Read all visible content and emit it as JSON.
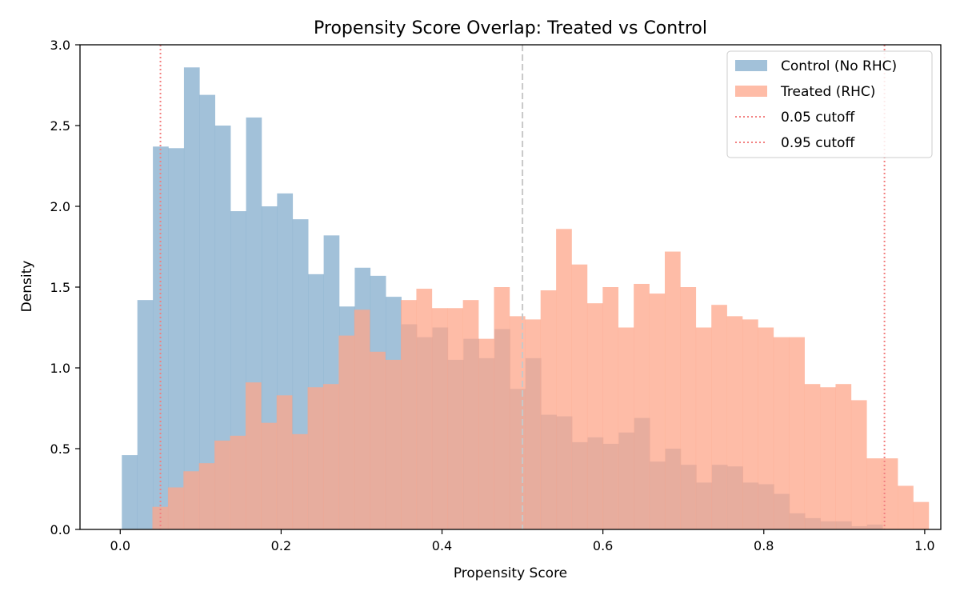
{
  "chart_data": {
    "type": "bar",
    "title": "Propensity Score Overlap: Treated vs Control",
    "xlabel": "Propensity Score",
    "ylabel": "Density",
    "xlim": [
      -0.05,
      1.02
    ],
    "ylim": [
      0,
      3.0
    ],
    "x_ticks": [
      "0.0",
      "0.2",
      "0.4",
      "0.6",
      "0.8",
      "1.0"
    ],
    "y_ticks": [
      "0.0",
      "0.5",
      "1.0",
      "1.5",
      "2.0",
      "2.5",
      "3.0"
    ],
    "grid": false,
    "legend_position": "top-right",
    "series": [
      {
        "name": "Control (No RHC)",
        "color": "#7aa6c9",
        "opacity": 0.7,
        "bin_start": 0.002,
        "bin_width": 0.0193,
        "values": [
          0.46,
          1.42,
          2.37,
          2.36,
          2.86,
          2.69,
          2.5,
          1.97,
          2.55,
          2.0,
          2.08,
          1.92,
          1.58,
          1.82,
          1.38,
          1.62,
          1.57,
          1.44,
          1.27,
          1.19,
          1.25,
          1.05,
          1.18,
          1.06,
          1.24,
          0.87,
          1.06,
          0.71,
          0.7,
          0.54,
          0.57,
          0.53,
          0.6,
          0.69,
          0.42,
          0.5,
          0.4,
          0.29,
          0.4,
          0.39,
          0.29,
          0.28,
          0.22,
          0.1,
          0.07,
          0.05,
          0.05,
          0.02,
          0.03
        ]
      },
      {
        "name": "Treated (RHC)",
        "color": "#fda58a",
        "opacity": 0.75,
        "bin_start": 0.04,
        "bin_width": 0.0193,
        "values": [
          0.14,
          0.26,
          0.36,
          0.41,
          0.55,
          0.58,
          0.91,
          0.66,
          0.83,
          0.59,
          0.88,
          0.9,
          1.2,
          1.36,
          1.1,
          1.05,
          1.42,
          1.49,
          1.37,
          1.37,
          1.42,
          1.18,
          1.5,
          1.32,
          1.3,
          1.48,
          1.86,
          1.64,
          1.4,
          1.5,
          1.25,
          1.52,
          1.46,
          1.72,
          1.5,
          1.25,
          1.39,
          1.32,
          1.3,
          1.25,
          1.19,
          1.19,
          0.9,
          0.88,
          0.9,
          0.8,
          0.44,
          0.44,
          0.27,
          0.17
        ]
      }
    ],
    "reference_lines": [
      {
        "name": "0.05 cutoff",
        "x": 0.05,
        "color": "#f28080",
        "style": "dotted"
      },
      {
        "name": "0.95 cutoff",
        "x": 0.95,
        "color": "#f28080",
        "style": "dotted"
      },
      {
        "x": 0.5,
        "color": "#c8c8c8",
        "style": "dashed"
      }
    ]
  }
}
